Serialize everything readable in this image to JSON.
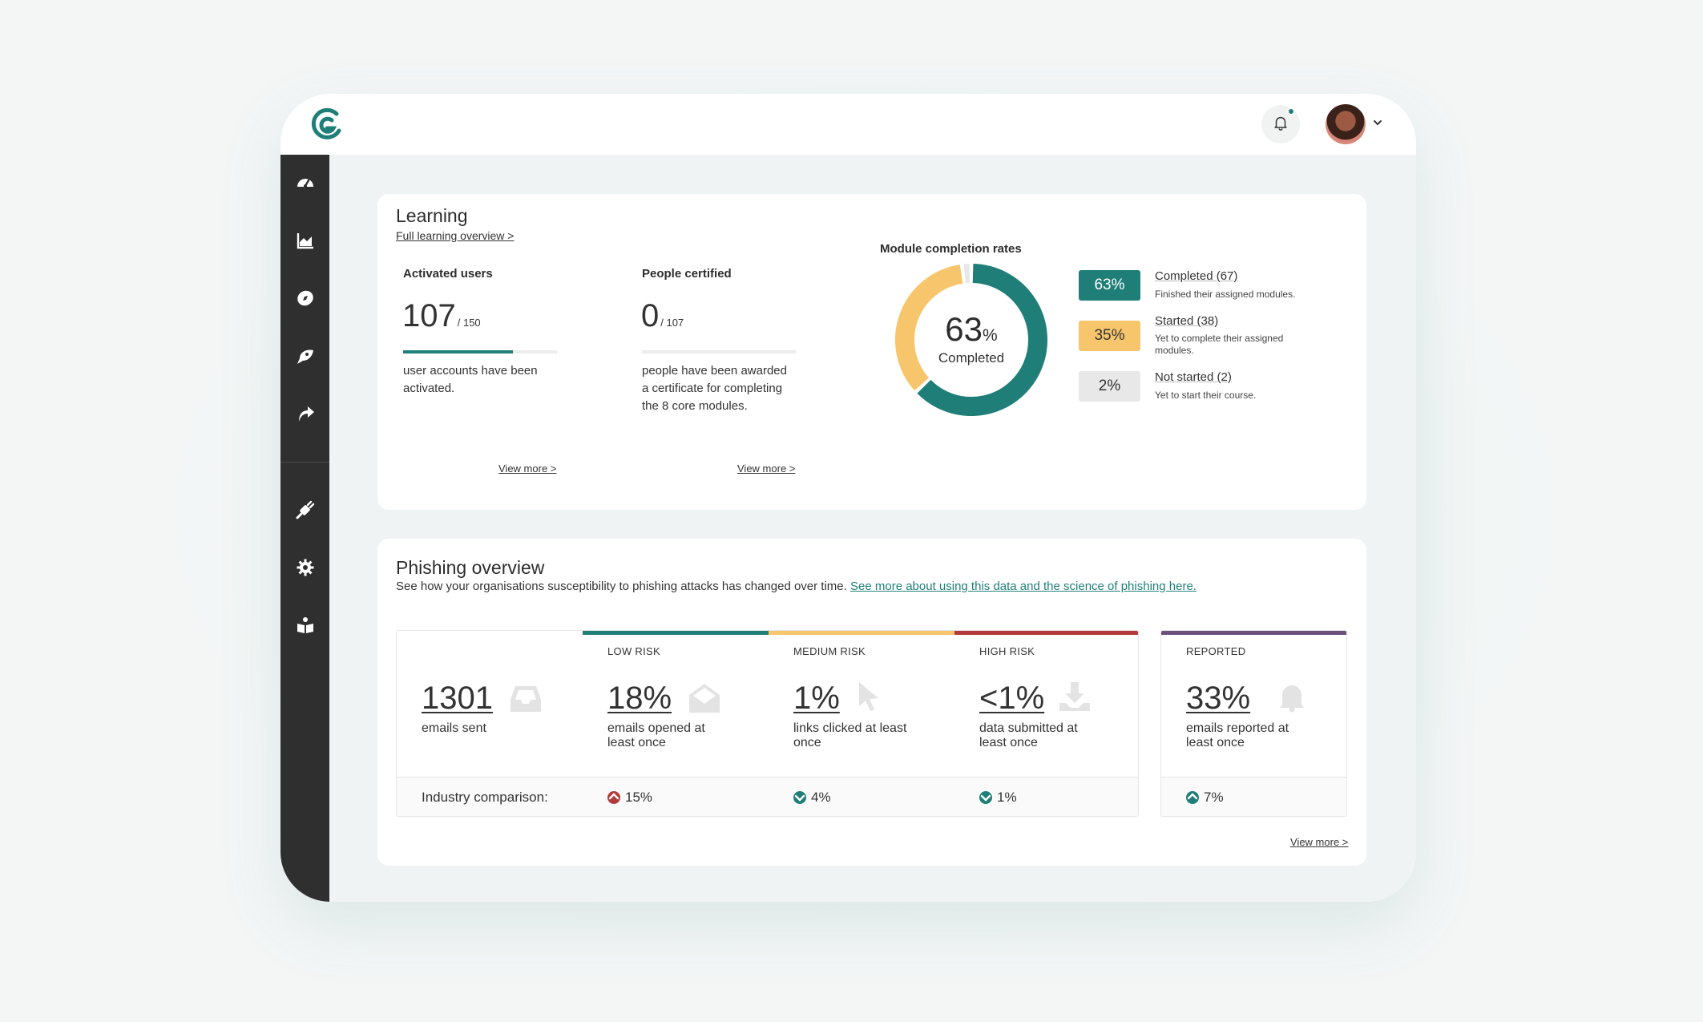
{
  "header": {
    "logo": "company-logo",
    "notification_icon": "bell-icon",
    "notification_dot_color": "#1f7f78",
    "avatar": "user-avatar",
    "menu_caret": "chevron-down-icon"
  },
  "sidebar": {
    "items": [
      {
        "icon": "dashboard-icon"
      },
      {
        "icon": "chart-icon"
      },
      {
        "icon": "compass-icon"
      },
      {
        "icon": "phishing-hook-icon"
      },
      {
        "icon": "share-arrow-icon"
      },
      {
        "icon": "plug-icon"
      },
      {
        "icon": "settings-icon"
      },
      {
        "icon": "book-icon"
      }
    ]
  },
  "learning": {
    "title": "Learning",
    "overview_link": "Full learning overview >",
    "activated": {
      "label": "Activated users",
      "value": "107",
      "suffix": "/ 150",
      "progress": 0.713,
      "desc_line1": "user accounts have been",
      "desc_line2": "activated.",
      "link": "View more >"
    },
    "certified": {
      "label": "People certified",
      "value": "0",
      "suffix": "/ 107",
      "progress": 0,
      "desc_line1": "people have been awarded",
      "desc_line2": "a certificate for completing",
      "desc_line3": "the 8 core modules.",
      "link": "View more >"
    },
    "modules": {
      "title": "Module completion rates",
      "center_value": "63",
      "center_unit": "%",
      "center_caption": "Completed",
      "segments": [
        {
          "badge": "63%",
          "name": "Completed (67)",
          "desc": "Finished their assigned modules.",
          "value": 63,
          "color": "#1f7f78",
          "text_color": "#ffffff"
        },
        {
          "badge": "35%",
          "name": "Started (38)",
          "desc": "Yet to complete their assigned modules.",
          "value": 35,
          "color": "#f7c56b",
          "text_color": "#333333"
        },
        {
          "badge": "2%",
          "name": "Not started (2)",
          "desc": "Yet to start their course.",
          "value": 2,
          "color": "#e8e8e8",
          "text_color": "#333333"
        }
      ]
    }
  },
  "phishing": {
    "title": "Phishing overview",
    "subtitle": "See how your organisations susceptibility to phishing attacks has changed over time.",
    "subtitle_link": "See more about using this data and the science of phishing here.",
    "sent": {
      "value": "1301",
      "desc": "emails sent",
      "icon": "inbox-icon"
    },
    "low": {
      "label": "LOW RISK",
      "value": "18%",
      "desc_line1": "emails opened at",
      "desc_line2": "least once",
      "icon": "envelope-open-icon",
      "color": "#1f7f78",
      "compare": "15%",
      "compare_dir": "up",
      "compare_color": "#b23a3a"
    },
    "medium": {
      "label": "MEDIUM RISK",
      "value": "1%",
      "desc_line1": "links clicked at least",
      "desc_line2": "once",
      "icon": "cursor-icon",
      "color": "#f7c56b",
      "compare": "4%",
      "compare_dir": "down",
      "compare_color": "#1f7f78"
    },
    "high": {
      "label": "HIGH RISK",
      "value": "<1%",
      "desc_line1": "data submitted at",
      "desc_line2": "least once",
      "icon": "download-icon",
      "color": "#b23a3a",
      "compare": "1%",
      "compare_dir": "down",
      "compare_color": "#1f7f78"
    },
    "reported": {
      "label": "REPORTED",
      "value": "33%",
      "desc_line1": "emails reported at",
      "desc_line2": "least once",
      "icon": "bell-icon",
      "color": "#6b4f7c",
      "compare": "7%",
      "compare_dir": "up",
      "compare_color": "#1f7f78"
    },
    "compare_label": "Industry comparison:",
    "link": "View more >"
  }
}
